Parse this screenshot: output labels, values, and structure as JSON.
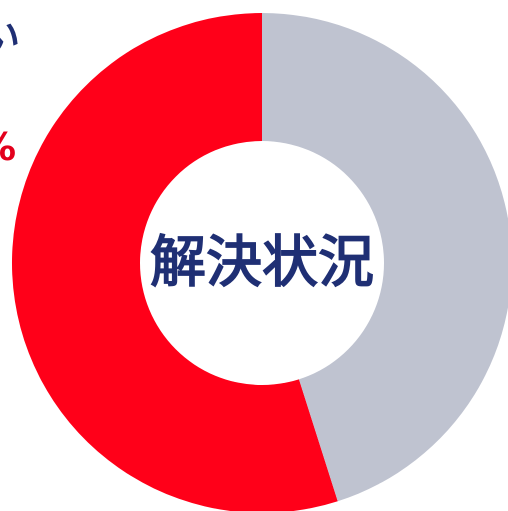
{
  "chart_data": {
    "type": "pie",
    "style": "donut",
    "center_label": "解決状況",
    "slices": [
      {
        "value": 54.9,
        "color": "#ff0019"
      },
      {
        "value": 45.1,
        "color": "#bfc3d0"
      }
    ],
    "start_angle_deg": 0,
    "direction": "counterclockwise",
    "legend": "none"
  },
  "edge_text": {
    "top": "い",
    "mid": "%"
  },
  "colors": {
    "center_text": "#1f2f74",
    "background": "#ffffff"
  }
}
